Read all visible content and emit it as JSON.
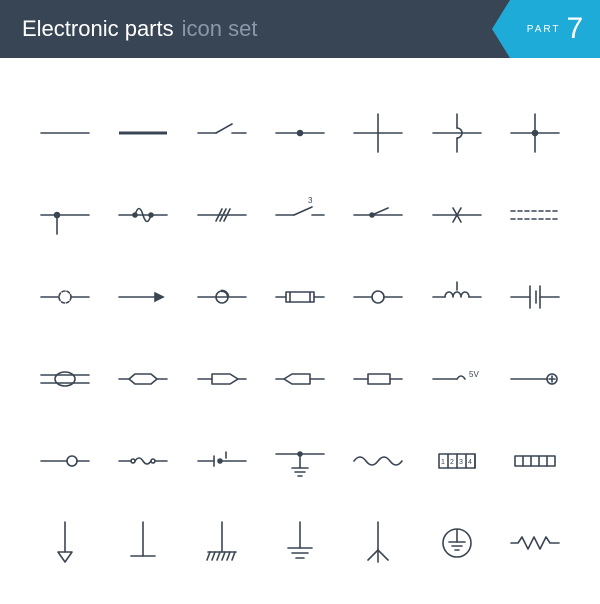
{
  "header": {
    "title_main": "Electronic parts",
    "title_sub": "icon set",
    "part_label": "part",
    "part_number": "7"
  },
  "style": {
    "header_bg": "#384555",
    "accent_bg": "#1eabd7",
    "icon_stroke": "#3a4553",
    "icon_stroke_width": 1.6,
    "grid": {
      "cols": 7,
      "rows": 6
    }
  },
  "symbols": [
    {
      "id": "wire-thin",
      "kind": "wire"
    },
    {
      "id": "wire-thick",
      "kind": "wire"
    },
    {
      "id": "switch-open",
      "kind": "switch"
    },
    {
      "id": "junction-dot",
      "kind": "junction"
    },
    {
      "id": "cross-nc",
      "kind": "wire"
    },
    {
      "id": "cross-jump",
      "kind": "wire"
    },
    {
      "id": "cross-joined",
      "kind": "junction"
    },
    {
      "id": "tee-junction",
      "kind": "junction"
    },
    {
      "id": "double-contact",
      "kind": "switch"
    },
    {
      "id": "triple-slash",
      "kind": "bus"
    },
    {
      "id": "switch-marked-3",
      "kind": "switch",
      "label": "3"
    },
    {
      "id": "switch-closed",
      "kind": "switch"
    },
    {
      "id": "ground-alt",
      "kind": "ground"
    },
    {
      "id": "dashed-pair",
      "kind": "wire"
    },
    {
      "id": "circle-open-dashed",
      "kind": "node"
    },
    {
      "id": "arrow-right",
      "kind": "wire"
    },
    {
      "id": "circle-loop",
      "kind": "node"
    },
    {
      "id": "fuse-ended",
      "kind": "fuse"
    },
    {
      "id": "circle-node",
      "kind": "node"
    },
    {
      "id": "inductor-coils",
      "kind": "inductor"
    },
    {
      "id": "battery",
      "kind": "source"
    },
    {
      "id": "oval-rail",
      "kind": "connector"
    },
    {
      "id": "hex-inline",
      "kind": "component"
    },
    {
      "id": "arrow-box-right",
      "kind": "connector"
    },
    {
      "id": "arrow-box-left",
      "kind": "connector"
    },
    {
      "id": "box-inline",
      "kind": "component"
    },
    {
      "id": "terminal-5v",
      "kind": "terminal",
      "label": "5V"
    },
    {
      "id": "terminal-plus",
      "kind": "terminal"
    },
    {
      "id": "open-terminal",
      "kind": "terminal"
    },
    {
      "id": "wave-link",
      "kind": "link"
    },
    {
      "id": "break-contact",
      "kind": "switch"
    },
    {
      "id": "ground-signal",
      "kind": "ground"
    },
    {
      "id": "wave-line",
      "kind": "ac"
    },
    {
      "id": "dip-1234",
      "kind": "dip",
      "labels": [
        "1",
        "2",
        "3",
        "4"
      ]
    },
    {
      "id": "segment-bar",
      "kind": "connector"
    },
    {
      "id": "ground-arrow",
      "kind": "ground"
    },
    {
      "id": "antenna-bar",
      "kind": "antenna"
    },
    {
      "id": "rake-ground",
      "kind": "ground"
    },
    {
      "id": "ground-earth",
      "kind": "ground"
    },
    {
      "id": "fork-ground",
      "kind": "ground"
    },
    {
      "id": "earth-circle",
      "kind": "ground"
    },
    {
      "id": "zigzag",
      "kind": "resistor"
    }
  ]
}
